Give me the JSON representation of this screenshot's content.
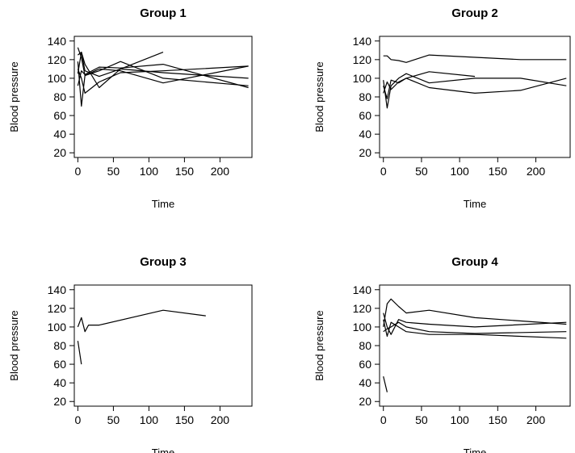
{
  "chart_data": [
    {
      "type": "line",
      "title": "Group 1",
      "xlabel": "Time",
      "ylabel": "Blood pressure",
      "xlim": [
        -5,
        245
      ],
      "ylim": [
        15,
        145
      ],
      "xticks": [
        0,
        50,
        100,
        150,
        200
      ],
      "yticks": [
        20,
        40,
        60,
        80,
        100,
        120,
        140
      ],
      "grid": false,
      "series": [
        {
          "x": [
            0,
            5,
            10,
            30,
            60,
            120,
            240
          ],
          "y": [
            133,
            122,
            103,
            108,
            118,
            100,
            92
          ]
        },
        {
          "x": [
            0,
            5,
            10,
            30,
            60,
            120,
            240
          ],
          "y": [
            118,
            70,
            103,
            110,
            108,
            95,
            113
          ]
        },
        {
          "x": [
            0,
            5,
            10,
            30,
            60,
            120,
            240
          ],
          "y": [
            92,
            108,
            104,
            112,
            111,
            115,
            90
          ]
        },
        {
          "x": [
            0,
            5,
            10,
            30,
            60,
            120,
            240
          ],
          "y": [
            125,
            128,
            108,
            102,
            110,
            106,
            100
          ]
        },
        {
          "x": [
            0,
            5,
            10,
            30,
            60,
            120
          ],
          "y": [
            105,
            128,
            115,
            90,
            110,
            128
          ]
        },
        {
          "x": [
            0,
            5,
            10,
            30,
            60,
            120,
            240
          ],
          "y": [
            110,
            100,
            84,
            96,
            106,
            108,
            113
          ]
        }
      ]
    },
    {
      "type": "line",
      "title": "Group 2",
      "xlabel": "Time",
      "ylabel": "Blood pressure",
      "xlim": [
        -5,
        245
      ],
      "ylim": [
        15,
        145
      ],
      "xticks": [
        0,
        50,
        100,
        150,
        200
      ],
      "yticks": [
        20,
        40,
        60,
        80,
        100,
        120,
        140
      ],
      "grid": false,
      "series": [
        {
          "x": [
            0,
            5,
            10,
            20,
            30,
            60,
            180,
            240
          ],
          "y": [
            124,
            124,
            120,
            119,
            117,
            125,
            120,
            120
          ]
        },
        {
          "x": [
            0,
            5,
            10,
            20,
            30,
            60,
            120,
            180,
            240
          ],
          "y": [
            98,
            68,
            92,
            100,
            105,
            95,
            100,
            100,
            92
          ]
        },
        {
          "x": [
            0,
            5,
            10,
            20,
            30,
            60,
            120,
            180,
            240
          ],
          "y": [
            84,
            96,
            88,
            96,
            100,
            90,
            84,
            87,
            100
          ]
        },
        {
          "x": [
            0,
            5,
            10,
            20,
            30,
            60,
            120
          ],
          "y": [
            92,
            78,
            98,
            95,
            100,
            107,
            102
          ]
        }
      ]
    },
    {
      "type": "line",
      "title": "Group 3",
      "xlabel": "Time",
      "ylabel": "Blood pressure",
      "xlim": [
        -5,
        245
      ],
      "ylim": [
        15,
        145
      ],
      "xticks": [
        0,
        50,
        100,
        150,
        200
      ],
      "yticks": [
        20,
        40,
        60,
        80,
        100,
        120,
        140
      ],
      "grid": false,
      "series": [
        {
          "x": [
            0,
            5,
            10,
            15,
            30,
            120,
            180
          ],
          "y": [
            100,
            110,
            95,
            102,
            102,
            118,
            112
          ]
        },
        {
          "x": [
            0,
            5
          ],
          "y": [
            85,
            60
          ]
        }
      ]
    },
    {
      "type": "line",
      "title": "Group 4",
      "xlabel": "Time",
      "ylabel": "Blood pressure",
      "xlim": [
        -5,
        245
      ],
      "ylim": [
        15,
        145
      ],
      "xticks": [
        0,
        50,
        100,
        150,
        200
      ],
      "yticks": [
        20,
        40,
        60,
        80,
        100,
        120,
        140
      ],
      "grid": false,
      "series": [
        {
          "x": [
            0,
            5,
            10,
            20,
            30,
            60,
            120,
            240
          ],
          "y": [
            100,
            125,
            130,
            122,
            115,
            118,
            110,
            103
          ]
        },
        {
          "x": [
            0,
            5,
            10,
            20,
            30,
            60,
            120,
            240
          ],
          "y": [
            115,
            100,
            92,
            108,
            105,
            103,
            100,
            105
          ]
        },
        {
          "x": [
            0,
            5,
            10,
            20,
            30,
            60,
            120,
            240
          ],
          "y": [
            95,
            98,
            100,
            105,
            100,
            95,
            93,
            95
          ]
        },
        {
          "x": [
            0,
            5,
            10,
            20,
            30,
            60,
            120,
            240
          ],
          "y": [
            108,
            90,
            105,
            100,
            95,
            92,
            92,
            88
          ]
        },
        {
          "x": [
            0,
            5
          ],
          "y": [
            47,
            30
          ]
        }
      ]
    }
  ]
}
